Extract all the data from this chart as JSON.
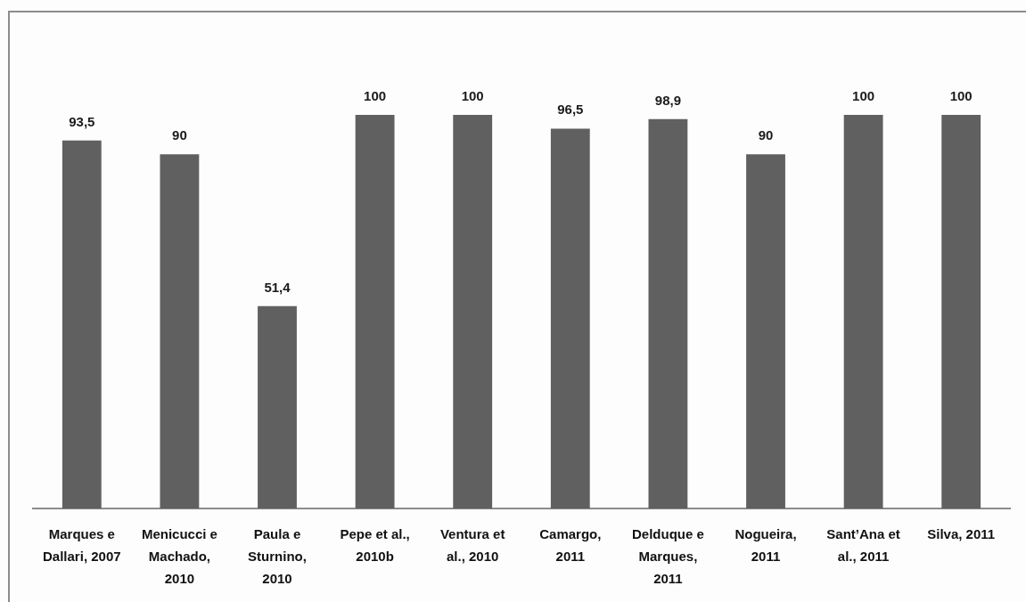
{
  "chart_data": {
    "type": "bar",
    "categories": [
      "Marques e Dallari, 2007",
      "Menicucci e Machado, 2010",
      "Paula e Sturnino, 2010",
      "Pepe et al., 2010b",
      "Ventura et al., 2010",
      "Camargo, 2011",
      "Delduque e Marques, 2011",
      "Nogueira, 2011",
      "Sant’Ana et al., 2011",
      "Silva, 2011"
    ],
    "values": [
      93.5,
      90,
      51.4,
      100,
      100,
      96.5,
      98.9,
      90,
      100,
      100
    ],
    "value_labels": [
      "93,5",
      "90",
      "51,4",
      "100",
      "100",
      "96,5",
      "98,9",
      "90",
      "100",
      "100"
    ],
    "color": "#606060"
  }
}
